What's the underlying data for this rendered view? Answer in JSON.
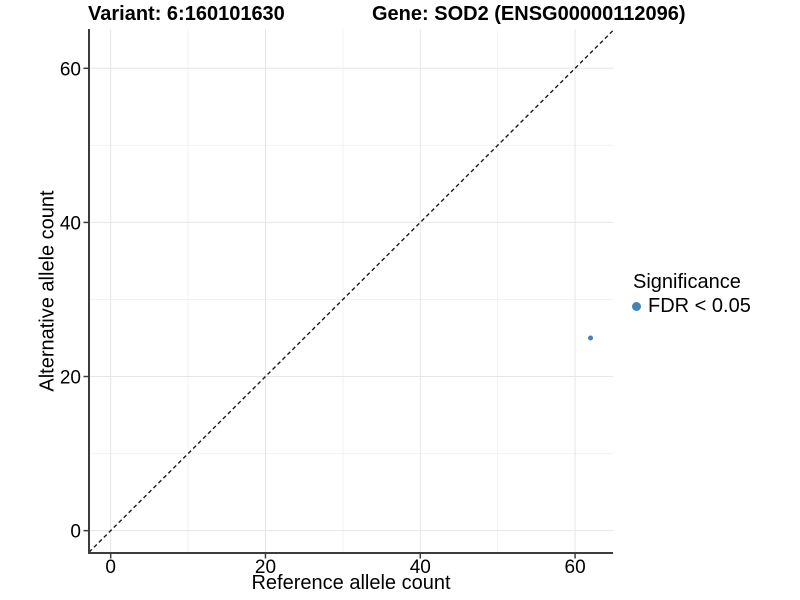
{
  "figure": {
    "title_left": "Variant: 6:160101630",
    "title_right": "Gene: SOD2 (ENSG00000112096)"
  },
  "chart_data": {
    "type": "scatter",
    "title": "Variant: 6:160101630   Gene: SOD2 (ENSG00000112096)",
    "xlabel": "Reference allele count",
    "ylabel": "Alternative allele count",
    "xlim": [
      -2.8,
      64.9
    ],
    "ylim": [
      -2.9,
      65.1
    ],
    "x_ticks": [
      0,
      20,
      40,
      60
    ],
    "y_ticks": [
      0,
      20,
      40,
      60
    ],
    "x_minor_ticks": [
      10,
      30,
      50
    ],
    "y_minor_ticks": [
      10,
      30,
      50
    ],
    "grid": "major+minor",
    "series": [
      {
        "name": "FDR < 0.05",
        "color": "#4682B4",
        "points": [
          {
            "x": 62,
            "y": 25
          }
        ]
      }
    ],
    "identity_line": {
      "slope": 1,
      "intercept": 0,
      "style": "dashed",
      "color": "#1a1a1a"
    },
    "legend": {
      "position": "right",
      "title": "Significance",
      "items": [
        {
          "label": "FDR < 0.05",
          "color": "#4682B4",
          "marker": "circle"
        }
      ]
    },
    "colors": {
      "axis_line": "#3c3c3c",
      "tick_text": "#000000",
      "grid_major": "#e6e6e6",
      "grid_minor": "#f2f2f2",
      "background": "#ffffff"
    }
  }
}
